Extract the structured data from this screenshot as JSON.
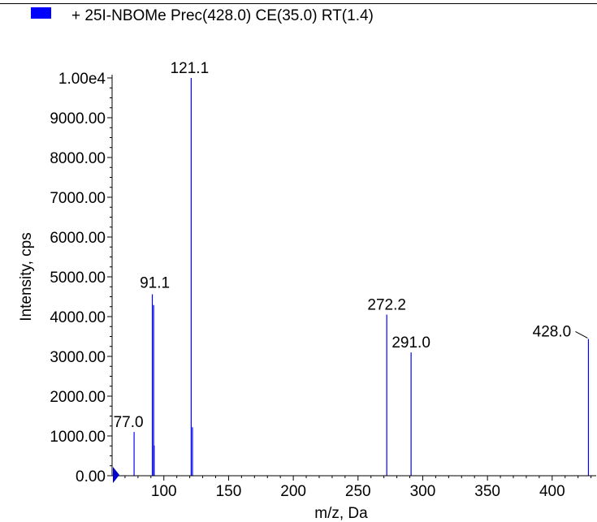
{
  "legend": {
    "text": "+ 25I-NBOMe Prec(428.0) CE(35.0) RT(1.4)",
    "color": "#0000ff"
  },
  "chart_data": {
    "type": "bar",
    "title": "",
    "xlabel": "m/z, Da",
    "ylabel": "Intensity, cps",
    "xlim": [
      60,
      434
    ],
    "ylim": [
      0,
      10000
    ],
    "x_ticks": [
      100,
      150,
      200,
      250,
      300,
      350,
      400
    ],
    "x_tick_labels": [
      "100",
      "150",
      "200",
      "250",
      "300",
      "350",
      "400"
    ],
    "y_ticks": [
      0,
      1000,
      2000,
      3000,
      4000,
      5000,
      6000,
      7000,
      8000,
      9000,
      10000
    ],
    "y_tick_labels": [
      "0.00",
      "1000.00",
      "2000.00",
      "3000.00",
      "4000.00",
      "5000.00",
      "6000.00",
      "7000.00",
      "8000.00",
      "9000.00",
      "1.00e4"
    ],
    "series": [
      {
        "color": "#0000ff",
        "peaks": [
          {
            "mz": 77.0,
            "intensity": 1100
          },
          {
            "mz": 91.1,
            "intensity": 4560
          },
          {
            "mz": 92.1,
            "intensity": 4290
          },
          {
            "mz": 92.5,
            "intensity": 760
          },
          {
            "mz": 121.1,
            "intensity": 10000
          },
          {
            "mz": 122.1,
            "intensity": 1220
          },
          {
            "mz": 272.2,
            "intensity": 4050
          },
          {
            "mz": 291.0,
            "intensity": 3100
          },
          {
            "mz": 428.0,
            "intensity": 3440
          }
        ]
      }
    ],
    "peak_labels": [
      {
        "text": "77.0",
        "mz": 77.0
      },
      {
        "text": "91.1",
        "mz": 91.1
      },
      {
        "text": "121.1",
        "mz": 121.1
      },
      {
        "text": "272.2",
        "mz": 272.2
      },
      {
        "text": "291.0",
        "mz": 291.0
      },
      {
        "text": "428.0",
        "mz": 428.0
      }
    ]
  }
}
